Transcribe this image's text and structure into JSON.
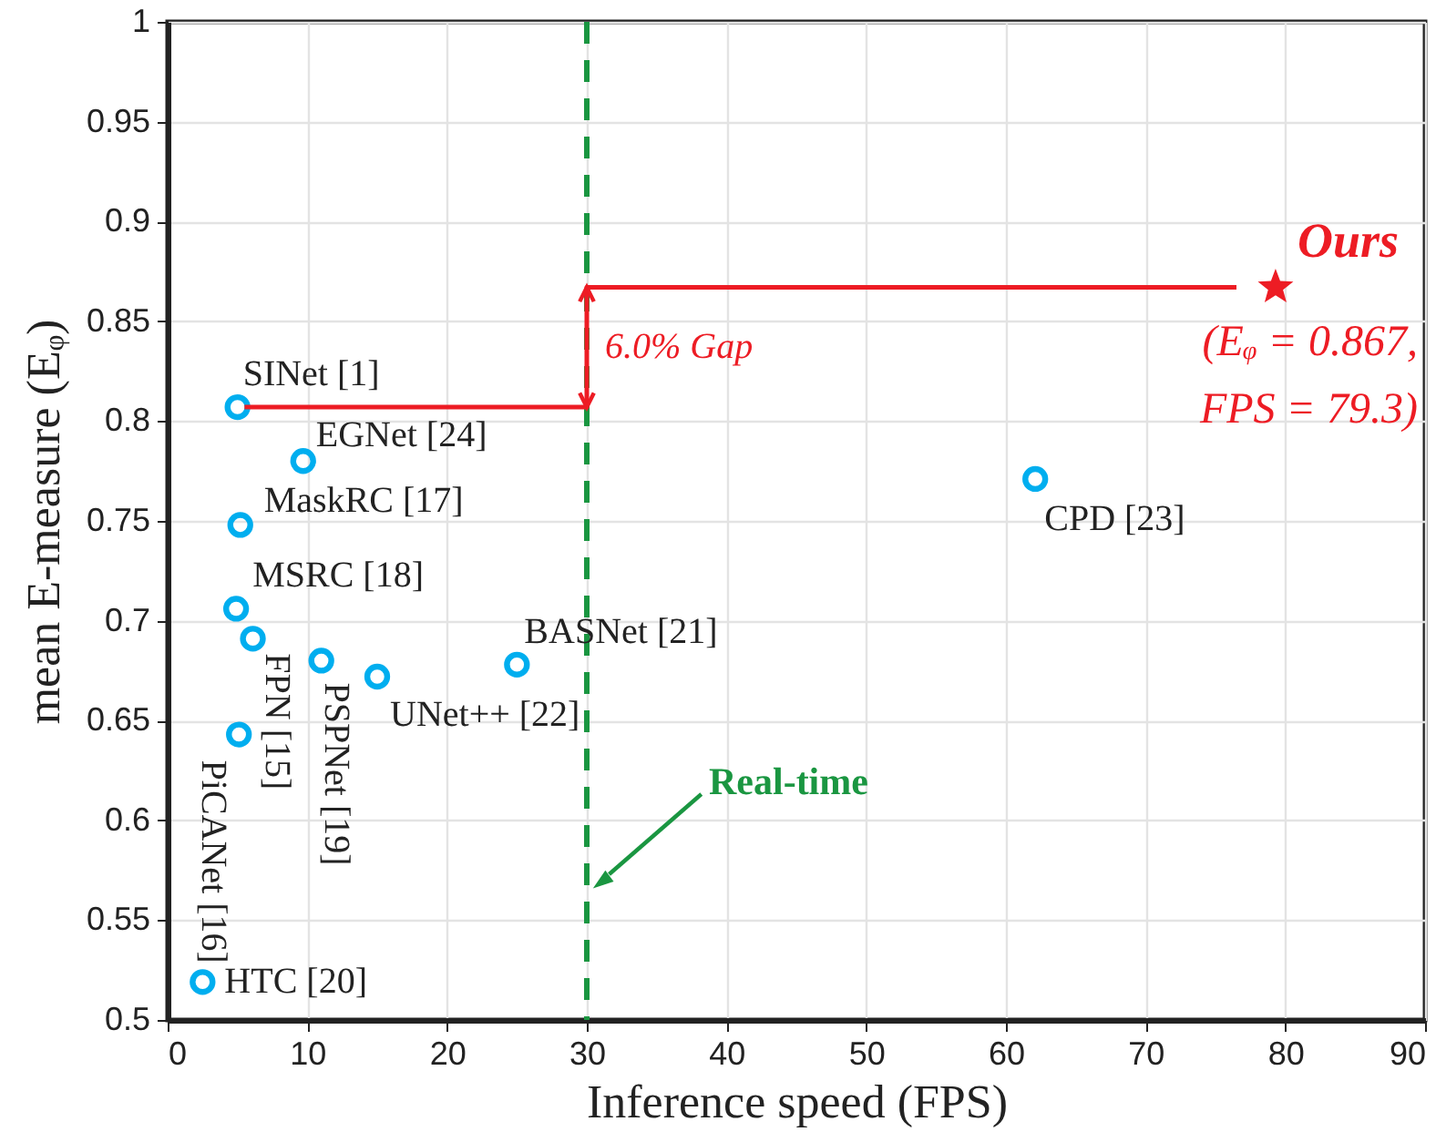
{
  "chart_data": {
    "type": "scatter",
    "xlabel": "Inference speed (FPS)",
    "ylabel": "mean E-measure (Eᵩ)",
    "xlim": [
      0,
      90
    ],
    "xticks": [
      0,
      10,
      20,
      30,
      40,
      50,
      60,
      70,
      80,
      90
    ],
    "ylim": [
      0.5,
      1
    ],
    "yticks": [
      0.5,
      0.55,
      0.6,
      0.65,
      0.7,
      0.75,
      0.8,
      0.85,
      0.9,
      0.95,
      1
    ],
    "grid": true,
    "series": [
      {
        "color": "#00aeef",
        "marker": "circle",
        "x": [
          5,
          9.7,
          5.2,
          4.9,
          6.1,
          5.1,
          11,
          15,
          25,
          2.5,
          62.1
        ],
        "values": [
          0.807,
          0.78,
          0.748,
          0.706,
          0.691,
          0.643,
          0.68,
          0.672,
          0.678,
          0.519,
          0.771
        ]
      },
      {
        "name": "Ours",
        "color": "#ed1c24",
        "marker": "star",
        "x": [
          79.3
        ],
        "values": [
          0.867
        ]
      },
      {
        "type": "line",
        "color": "#ed1c24",
        "line_style": "solid",
        "x": [
          5.5,
          30,
          30,
          76.5
        ],
        "values": [
          0.807,
          0.807,
          0.867,
          0.867
        ]
      }
    ],
    "ref_lines": [
      {
        "axis": "x",
        "value": 30,
        "label": "Real-time",
        "color": "#1a9641",
        "line_style": "dashed"
      }
    ],
    "annotations": [
      {
        "text": "SINet [1]",
        "x": 5,
        "y": 0.807
      },
      {
        "text": "EGNet [24]",
        "x": 9.7,
        "y": 0.78
      },
      {
        "text": "MaskRC [17]",
        "x": 5.2,
        "y": 0.748
      },
      {
        "text": "MSRC [18]",
        "x": 4.9,
        "y": 0.706
      },
      {
        "text": "FPN [15]",
        "x": 6.1,
        "y": 0.691
      },
      {
        "text": "PiCANet [16]",
        "x": 5.1,
        "y": 0.643
      },
      {
        "text": "PSPNet [19]",
        "x": 11,
        "y": 0.68
      },
      {
        "text": "UNet++ [22]",
        "x": 15,
        "y": 0.672
      },
      {
        "text": "BASNet [21]",
        "x": 25,
        "y": 0.678
      },
      {
        "text": "HTC [20]",
        "x": 2.5,
        "y": 0.519
      },
      {
        "text": "CPD [23]",
        "x": 62.1,
        "y": 0.771
      },
      {
        "text": "6.0% Gap",
        "x": 30,
        "y": 0.837
      },
      {
        "text": "(Eᵩ = 0.867,\nFPS = 79.3)",
        "x": 79.3,
        "y": 0.867
      }
    ]
  }
}
